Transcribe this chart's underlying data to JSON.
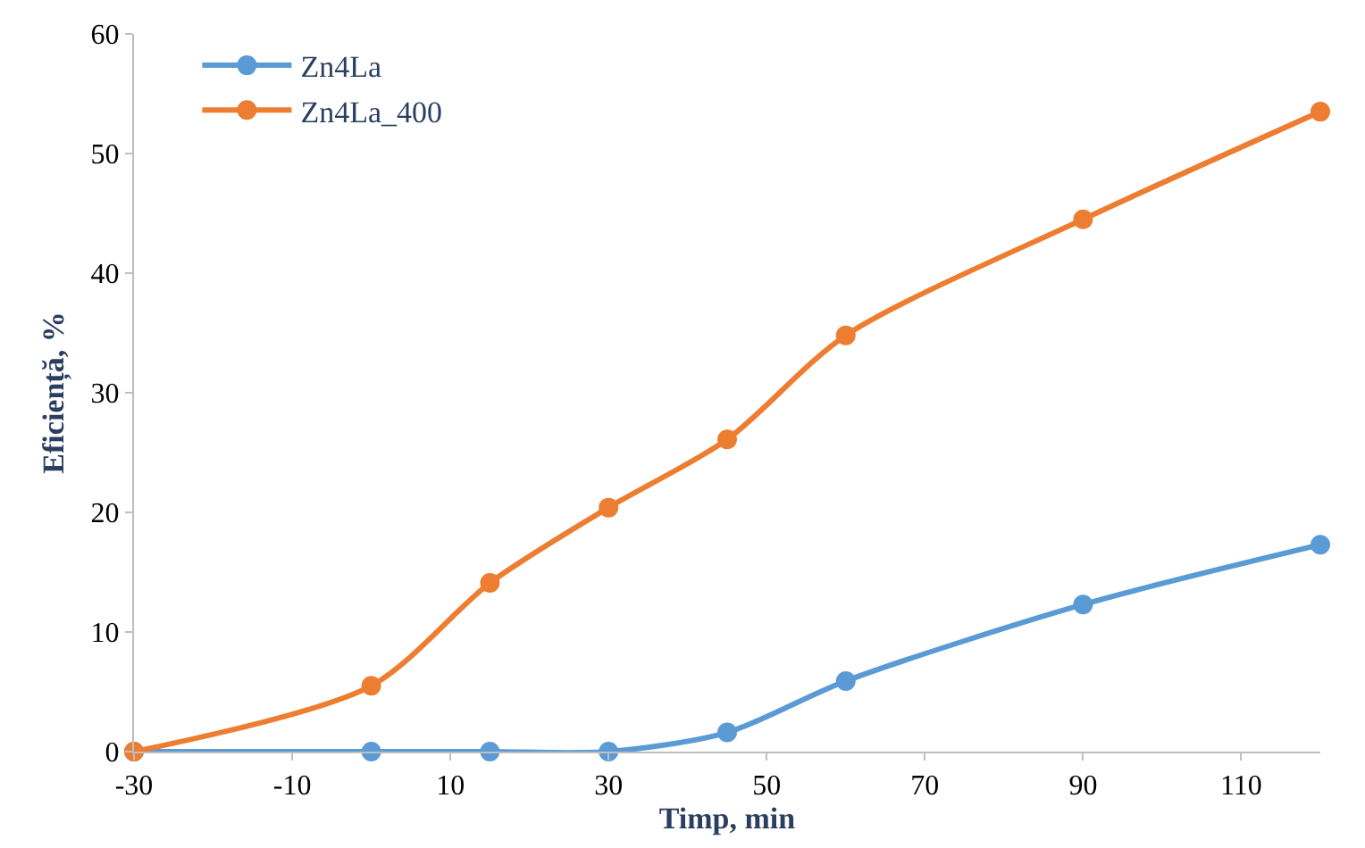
{
  "chart_data": {
    "type": "line",
    "xlabel": "Timp, min",
    "ylabel": "Eficiență, %",
    "xlim": [
      -30,
      120
    ],
    "xticks": [
      -30,
      -10,
      10,
      30,
      50,
      70,
      90,
      110
    ],
    "ylim": [
      0,
      60
    ],
    "yticks": [
      0,
      10,
      20,
      30,
      40,
      50,
      60
    ],
    "x": [
      -30,
      0,
      15,
      30,
      45,
      60,
      90,
      120
    ],
    "series": [
      {
        "name": "Zn4La",
        "color": "#5b9bd5",
        "values": [
          0,
          0,
          0,
          0,
          1.6,
          5.9,
          12.3,
          17.3
        ]
      },
      {
        "name": "Zn4La_400",
        "color": "#ed7d31",
        "values": [
          0,
          5.5,
          14.1,
          20.4,
          26.1,
          34.8,
          44.5,
          53.5
        ]
      }
    ],
    "marker": "circle",
    "line_style": "solid",
    "legend": "top left"
  }
}
